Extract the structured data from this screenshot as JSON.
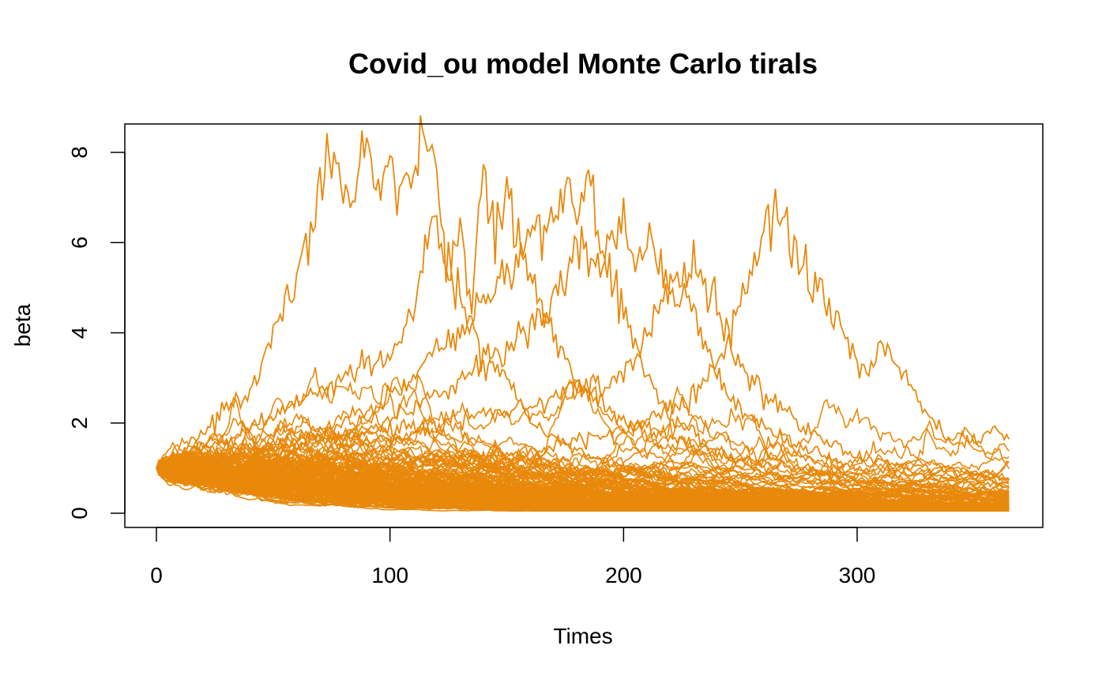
{
  "chart_data": {
    "type": "line",
    "title": "Covid_ou model Monte Carlo tirals",
    "xlabel": "Times",
    "ylabel": "beta",
    "xlim": [
      0,
      365
    ],
    "ylim": [
      0,
      8.3
    ],
    "xticks": [
      0,
      100,
      200,
      300
    ],
    "yticks": [
      0,
      2,
      4,
      6,
      8
    ],
    "grid": false,
    "legend": "none",
    "line_color": "#E8890C",
    "n_trials": 200,
    "start_value": 1.0,
    "series": [
      {
        "x": [
          0,
          10,
          20,
          30,
          40,
          50,
          60,
          70,
          75,
          80,
          85,
          88,
          95,
          100,
          105,
          110,
          115,
          120,
          125,
          130,
          140,
          150,
          160,
          175,
          200,
          250,
          300,
          365
        ],
        "values": [
          1.0,
          1.3,
          1.8,
          2.3,
          2.6,
          4.0,
          5.4,
          7.2,
          8.1,
          7.2,
          6.8,
          8.3,
          7.0,
          7.7,
          7.2,
          7.4,
          8.2,
          7.7,
          5.5,
          4.8,
          3.5,
          3.0,
          2.0,
          1.5,
          1.0,
          0.6,
          0.4,
          0.3
        ]
      },
      {
        "x": [
          0,
          20,
          40,
          60,
          80,
          100,
          110,
          115,
          120,
          125,
          130,
          135,
          140,
          145,
          150,
          160,
          170,
          180,
          200,
          250,
          300,
          365
        ],
        "values": [
          1.0,
          1.4,
          1.9,
          2.5,
          3.0,
          3.5,
          4.5,
          6.2,
          6.5,
          5.0,
          6.3,
          4.8,
          7.6,
          6.2,
          7.0,
          5.2,
          4.0,
          3.0,
          2.0,
          1.2,
          0.7,
          0.5
        ]
      },
      {
        "x": [
          0,
          30,
          60,
          90,
          120,
          140,
          150,
          160,
          170,
          175,
          180,
          185,
          190,
          195,
          200,
          210,
          220,
          230,
          240,
          260,
          300,
          365
        ],
        "values": [
          1.0,
          1.3,
          1.6,
          2.2,
          3.5,
          4.6,
          5.3,
          6.2,
          6.7,
          7.4,
          6.6,
          7.4,
          6.0,
          5.2,
          4.5,
          3.0,
          2.2,
          1.8,
          1.3,
          0.9,
          0.6,
          0.4
        ]
      },
      {
        "x": [
          0,
          30,
          60,
          90,
          120,
          150,
          170,
          180,
          190,
          195,
          200,
          205,
          210,
          215,
          220,
          230,
          240,
          250,
          270,
          300,
          365
        ],
        "values": [
          1.0,
          1.2,
          1.5,
          1.9,
          2.6,
          3.6,
          4.8,
          5.8,
          5.4,
          5.9,
          6.4,
          5.6,
          6.0,
          5.4,
          5.0,
          4.5,
          3.0,
          2.3,
          1.6,
          1.0,
          0.6
        ]
      },
      {
        "x": [
          0,
          40,
          80,
          120,
          160,
          200,
          210,
          220,
          225,
          230,
          240,
          245,
          250,
          260,
          280,
          300,
          365
        ],
        "values": [
          1.0,
          1.3,
          1.7,
          2.0,
          2.4,
          3.0,
          4.0,
          5.0,
          5.3,
          5.5,
          4.7,
          3.8,
          3.2,
          2.6,
          1.8,
          1.2,
          0.8
        ]
      },
      {
        "x": [
          0,
          50,
          100,
          150,
          200,
          230,
          240,
          245,
          250,
          255,
          260,
          265,
          270,
          275,
          280,
          290,
          300,
          305,
          310,
          320,
          330,
          340,
          350,
          360,
          365
        ],
        "values": [
          1.0,
          1.0,
          1.1,
          1.3,
          1.8,
          2.6,
          3.3,
          4.0,
          4.5,
          5.5,
          6.3,
          6.7,
          6.3,
          5.6,
          5.2,
          4.3,
          3.5,
          3.0,
          3.8,
          3.0,
          2.2,
          1.5,
          1.6,
          1.8,
          1.6
        ]
      }
    ]
  }
}
